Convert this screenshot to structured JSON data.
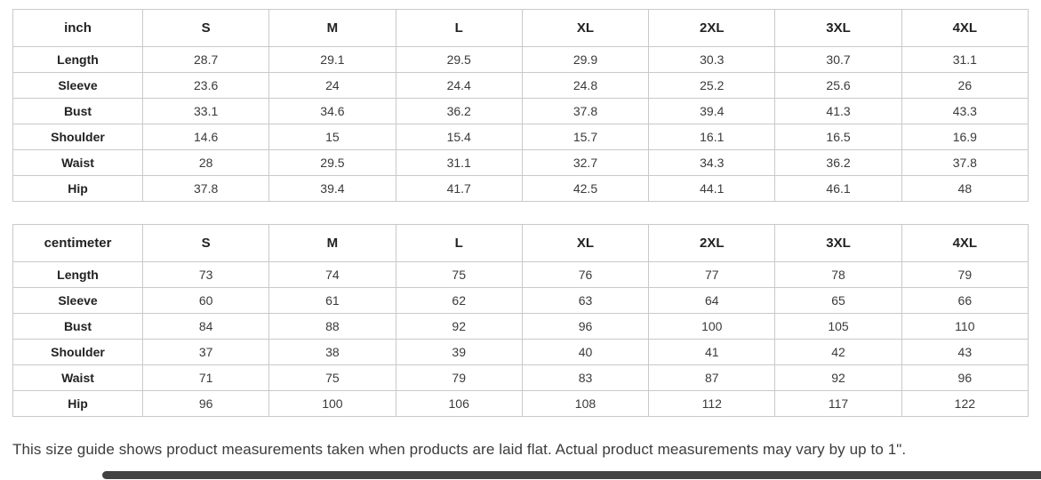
{
  "colors": {
    "table_border": "#c9c9c9",
    "header_text": "#222222",
    "value_text": "#3a3a3a",
    "note_text": "#3c3c3c",
    "scrollbar_thumb": "#424242"
  },
  "tables": [
    {
      "unit_label": "inch",
      "columns": [
        "S",
        "M",
        "L",
        "XL",
        "2XL",
        "3XL",
        "4XL"
      ],
      "rows": [
        {
          "label": "Length",
          "values": [
            "28.7",
            "29.1",
            "29.5",
            "29.9",
            "30.3",
            "30.7",
            "31.1"
          ]
        },
        {
          "label": "Sleeve",
          "values": [
            "23.6",
            "24",
            "24.4",
            "24.8",
            "25.2",
            "25.6",
            "26"
          ]
        },
        {
          "label": "Bust",
          "values": [
            "33.1",
            "34.6",
            "36.2",
            "37.8",
            "39.4",
            "41.3",
            "43.3"
          ]
        },
        {
          "label": "Shoulder",
          "values": [
            "14.6",
            "15",
            "15.4",
            "15.7",
            "16.1",
            "16.5",
            "16.9"
          ]
        },
        {
          "label": "Waist",
          "values": [
            "28",
            "29.5",
            "31.1",
            "32.7",
            "34.3",
            "36.2",
            "37.8"
          ]
        },
        {
          "label": "Hip",
          "values": [
            "37.8",
            "39.4",
            "41.7",
            "42.5",
            "44.1",
            "46.1",
            "48"
          ]
        }
      ]
    },
    {
      "unit_label": "centimeter",
      "columns": [
        "S",
        "M",
        "L",
        "XL",
        "2XL",
        "3XL",
        "4XL"
      ],
      "rows": [
        {
          "label": "Length",
          "values": [
            "73",
            "74",
            "75",
            "76",
            "77",
            "78",
            "79"
          ]
        },
        {
          "label": "Sleeve",
          "values": [
            "60",
            "61",
            "62",
            "63",
            "64",
            "65",
            "66"
          ]
        },
        {
          "label": "Bust",
          "values": [
            "84",
            "88",
            "92",
            "96",
            "100",
            "105",
            "110"
          ]
        },
        {
          "label": "Shoulder",
          "values": [
            "37",
            "38",
            "39",
            "40",
            "41",
            "42",
            "43"
          ]
        },
        {
          "label": "Waist",
          "values": [
            "71",
            "75",
            "79",
            "83",
            "87",
            "92",
            "96"
          ]
        },
        {
          "label": "Hip",
          "values": [
            "96",
            "100",
            "106",
            "108",
            "112",
            "117",
            "122"
          ]
        }
      ]
    }
  ],
  "footer": {
    "note": "This size guide shows product measurements taken when products are laid flat. Actual product measurements may vary by up to 1\"."
  }
}
